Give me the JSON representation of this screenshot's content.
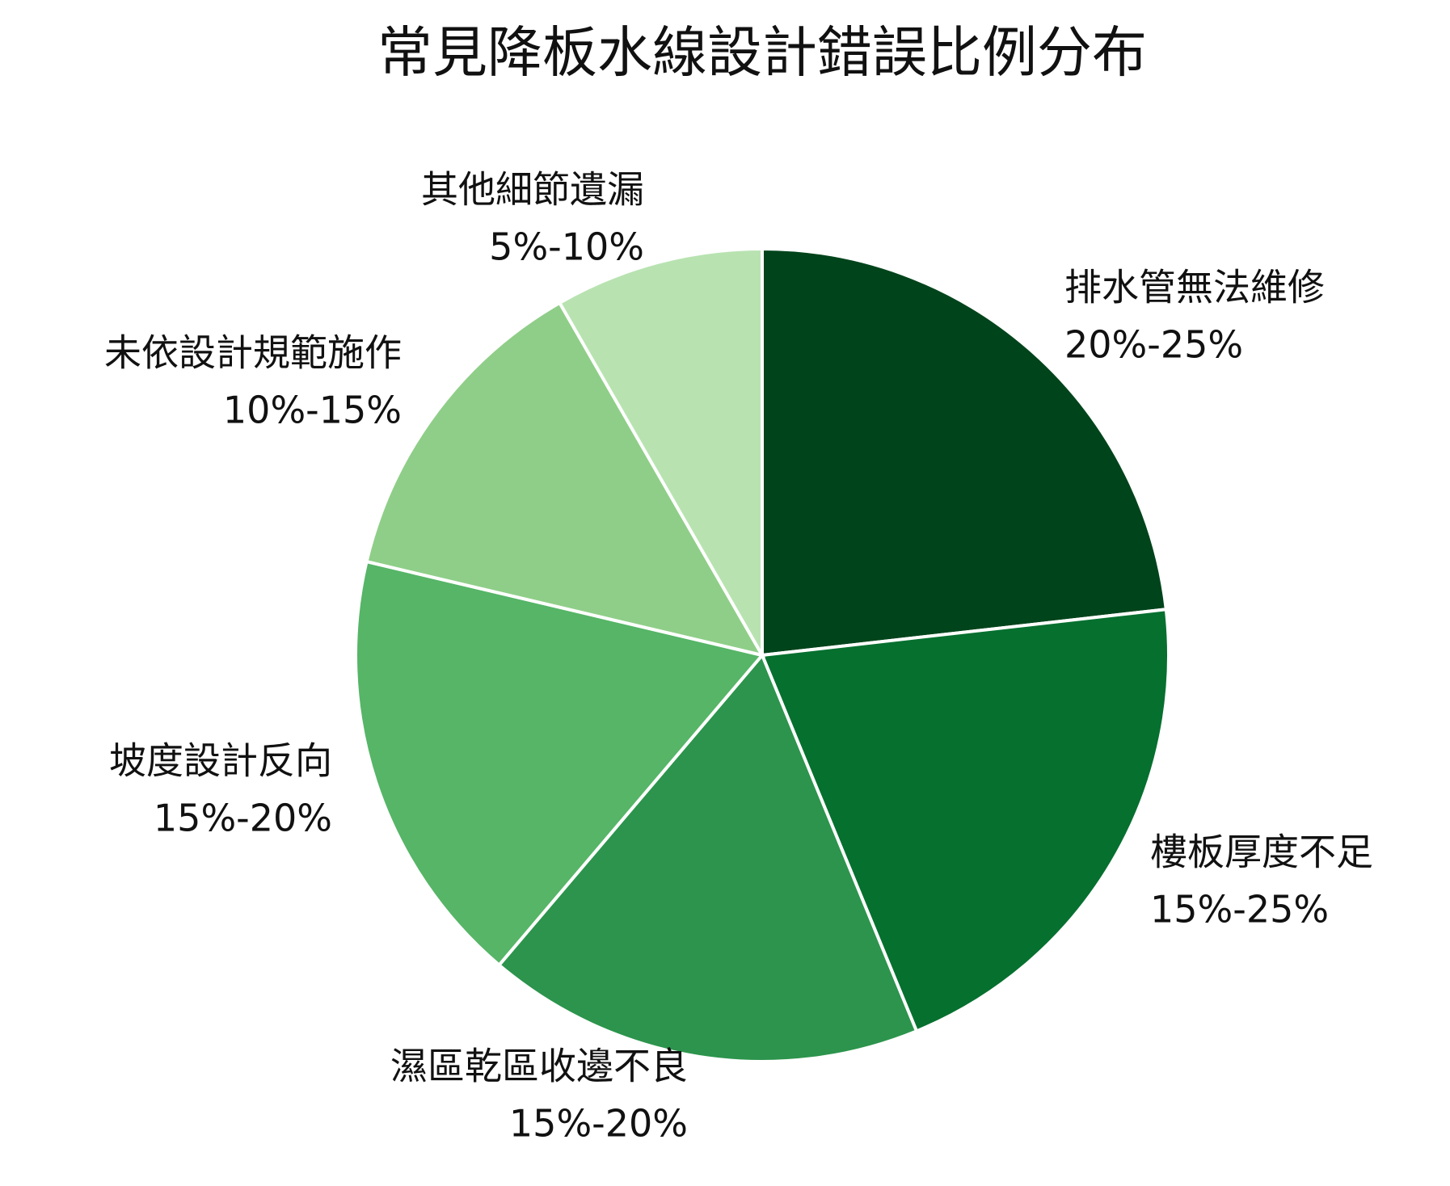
{
  "chart_data": {
    "type": "pie",
    "title": "常見降板水線設計錯誤比例分布",
    "categories": [
      "排水管無法維修",
      "樓板厚度不足",
      "濕區乾區收邊不良",
      "坡度設計反向",
      "未依設計規範施作",
      "其他細節遺漏"
    ],
    "values": [
      23.2,
      20.6,
      17.4,
      17.5,
      13,
      8.3
    ],
    "range_labels": [
      "20%-25%",
      "15%-25%",
      "15%-20%",
      "15%-20%",
      "10%-15%",
      "5%-10%"
    ],
    "colors": [
      "#00441b",
      "#06702f",
      "#2c944c",
      "#56b567",
      "#8fce88",
      "#b8e3b1"
    ]
  }
}
